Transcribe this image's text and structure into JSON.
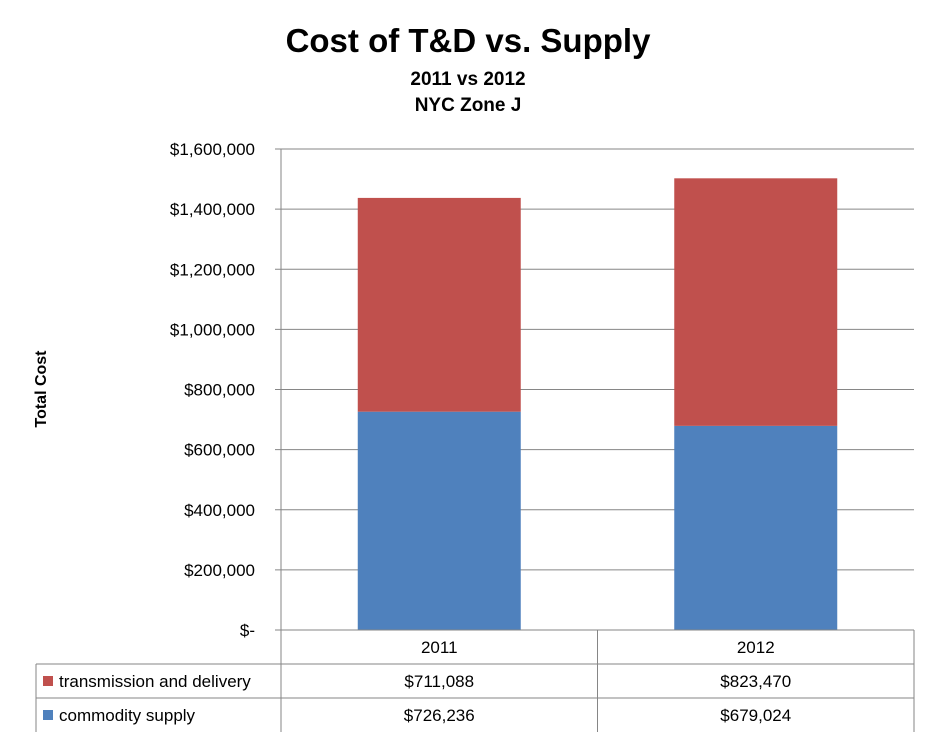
{
  "chart_data": {
    "type": "bar",
    "stacked": true,
    "title": "Cost of T&D vs. Supply",
    "subtitle_lines": [
      "2011 vs 2012",
      "NYC Zone J"
    ],
    "ylabel": "Total Cost",
    "xlabel": "",
    "categories": [
      "2011",
      "2012"
    ],
    "ylim": [
      0,
      1600000
    ],
    "yticks": [
      0,
      200000,
      400000,
      600000,
      800000,
      1000000,
      1200000,
      1400000,
      1600000
    ],
    "ytick_labels": [
      "$-",
      "$200,000",
      "$400,000",
      "$600,000",
      "$800,000",
      "$1,000,000",
      "$1,200,000",
      "$1,400,000",
      "$1,600,000"
    ],
    "grid": true,
    "legend_placement": "data-table-left",
    "series": [
      {
        "name": "commodity supply",
        "color": "#4f81bd",
        "values": [
          726236,
          679024
        ],
        "value_labels": [
          "$726,236",
          "$679,024"
        ]
      },
      {
        "name": "transmission and delivery",
        "color": "#c0504d",
        "values": [
          711088,
          823470
        ],
        "value_labels": [
          "$711,088",
          "$823,470"
        ]
      }
    ],
    "table_row_order": [
      "transmission and delivery",
      "commodity supply"
    ]
  }
}
